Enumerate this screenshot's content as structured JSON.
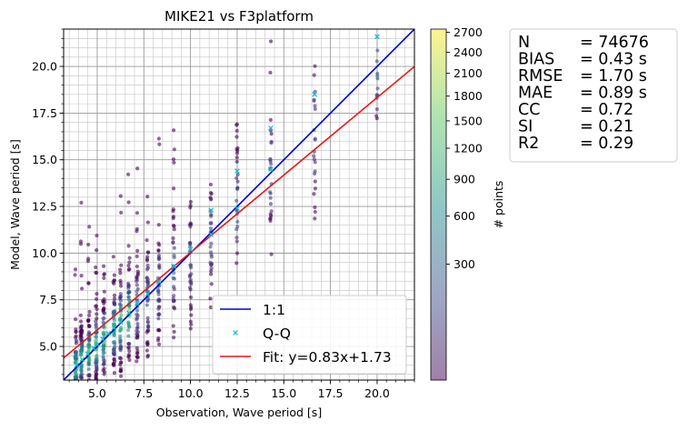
{
  "chart_data": {
    "type": "scatter",
    "title": "MIKE21 vs F3platform",
    "xlabel": "Observation, Wave period [s]",
    "ylabel": "Model, Wave period [s]",
    "xlim": [
      3.2,
      22
    ],
    "ylim": [
      3.2,
      22
    ],
    "x_ticks": [
      5.0,
      7.5,
      10.0,
      12.5,
      15.0,
      17.5,
      20.0
    ],
    "y_ticks": [
      5.0,
      7.5,
      10.0,
      12.5,
      15.0,
      17.5,
      20.0
    ],
    "x_tick_labels": [
      "5.0",
      "7.5",
      "10.0",
      "12.5",
      "15.0",
      "17.5",
      "20.0"
    ],
    "y_tick_labels": [
      "5.0",
      "7.5",
      "10.0",
      "12.5",
      "15.0",
      "17.5",
      "20.0"
    ],
    "grid": true,
    "minor_grid": true,
    "colormap": "viridis",
    "colorbar": {
      "label": "# points",
      "scale": "sqrt",
      "range": [
        0,
        2750
      ],
      "ticks": [
        300,
        600,
        900,
        1200,
        1500,
        1800,
        2100,
        2400,
        2700
      ],
      "tick_labels": [
        "300",
        "600",
        "900",
        "1200",
        "1500",
        "1800",
        "2100",
        "2400",
        "2700"
      ]
    },
    "observation_bins": [
      3.85,
      4.15,
      4.55,
      4.95,
      5.35,
      5.9,
      6.25,
      6.7,
      7.15,
      7.7,
      8.3,
      9.1,
      10.0,
      11.1,
      12.5,
      14.3,
      16.65,
      20.0
    ],
    "series": [
      {
        "name": "1:1",
        "type": "line",
        "color": "#0000cc",
        "slope": 1.0,
        "intercept": 0.0
      },
      {
        "name": "Q-Q",
        "type": "scatter",
        "marker": "x",
        "color": "#17becf",
        "x": [
          3.9,
          4.2,
          4.5,
          4.8,
          5.0,
          5.3,
          5.6,
          5.9,
          6.25,
          6.7,
          7.15,
          7.7,
          8.3,
          9.1,
          10.0,
          11.1,
          11.1,
          12.5,
          12.5,
          14.3,
          14.3,
          16.65,
          20.0
        ],
        "y": [
          4.0,
          4.3,
          4.6,
          4.9,
          5.1,
          5.4,
          5.7,
          6.0,
          6.3,
          6.8,
          7.3,
          7.8,
          8.5,
          9.3,
          10.2,
          11.0,
          12.3,
          12.4,
          14.4,
          14.5,
          16.7,
          18.5,
          21.6
        ]
      },
      {
        "name": "Fit: y=0.83x+1.73",
        "type": "line",
        "color": "#e41a1c",
        "slope": 0.83,
        "intercept": 1.73
      }
    ],
    "legend": {
      "placement": "lower-right",
      "entries": [
        "1:1",
        "Q-Q",
        "Fit: y=0.83x+1.73"
      ]
    },
    "statistics": [
      {
        "label": "N",
        "value": "= 74676"
      },
      {
        "label": "BIAS",
        "value": "= 0.43 s"
      },
      {
        "label": "RMSE",
        "value": "= 1.70 s"
      },
      {
        "label": "MAE",
        "value": "= 0.89 s"
      },
      {
        "label": "CC",
        "value": "= 0.72"
      },
      {
        "label": "SI",
        "value": "= 0.21"
      },
      {
        "label": "R2",
        "value": "= 0.29"
      }
    ]
  }
}
